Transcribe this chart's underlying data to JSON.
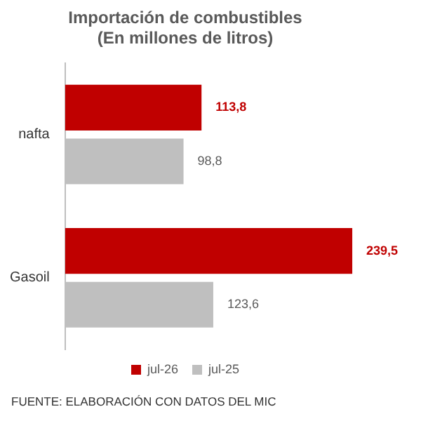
{
  "chart_data": {
    "type": "bar",
    "orientation": "horizontal",
    "title": "Importación de combustibles\n(En millones de litros)",
    "categories": [
      "nafta",
      "Gasoil"
    ],
    "series": [
      {
        "name": "jul-26",
        "color": "#c00000",
        "values": [
          113.8,
          239.5
        ],
        "value_labels": [
          "113,8",
          "239,5"
        ]
      },
      {
        "name": "jul-25",
        "color": "#bfbfbf",
        "values": [
          98.8,
          123.6
        ],
        "value_labels": [
          "98,8",
          "123,6"
        ]
      }
    ],
    "legend": "bottom",
    "grid": false,
    "annotations": [
      "FUENTE: ELABORACIÓN CON DATOS DEL MIC"
    ]
  }
}
